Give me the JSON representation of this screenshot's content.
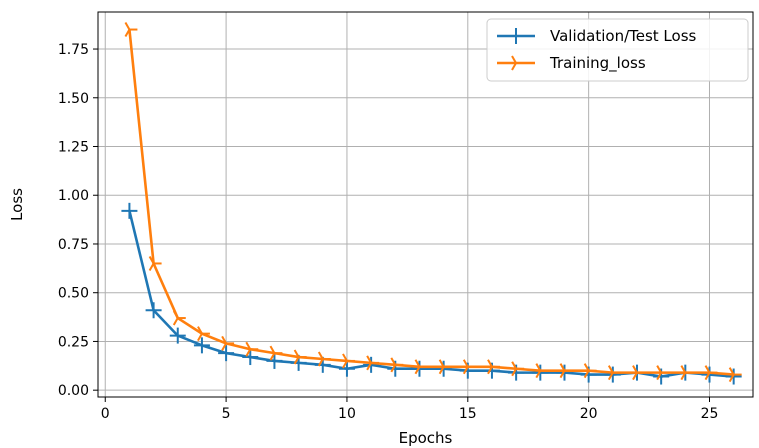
{
  "chart_data": {
    "type": "line",
    "title": "",
    "xlabel": "Epochs",
    "ylabel": "Loss",
    "xlim": [
      -0.3,
      26.8
    ],
    "ylim": [
      -0.035,
      1.94
    ],
    "xticks": [
      0,
      5,
      10,
      15,
      20,
      25
    ],
    "xtick_labels": [
      "0",
      "5",
      "10",
      "15",
      "20",
      "25"
    ],
    "yticks": [
      0.0,
      0.25,
      0.5,
      0.75,
      1.0,
      1.25,
      1.5,
      1.75
    ],
    "ytick_labels": [
      "0.00",
      "0.25",
      "0.50",
      "0.75",
      "1.00",
      "1.25",
      "1.50",
      "1.75"
    ],
    "grid": true,
    "legend_position": "top-right",
    "x": [
      1,
      2,
      3,
      4,
      5,
      6,
      7,
      8,
      9,
      10,
      11,
      12,
      13,
      14,
      15,
      16,
      17,
      18,
      19,
      20,
      21,
      22,
      23,
      24,
      25,
      26
    ],
    "series": [
      {
        "name": "Validation/Test Loss",
        "color": "#1f77b4",
        "marker": "plus",
        "values": [
          0.92,
          0.41,
          0.28,
          0.23,
          0.19,
          0.17,
          0.15,
          0.14,
          0.13,
          0.11,
          0.13,
          0.11,
          0.11,
          0.11,
          0.1,
          0.1,
          0.09,
          0.09,
          0.09,
          0.08,
          0.08,
          0.09,
          0.07,
          0.09,
          0.08,
          0.07
        ]
      },
      {
        "name": "Training_loss",
        "color": "#ff7f0e",
        "marker": "tri_right",
        "values": [
          1.85,
          0.65,
          0.37,
          0.29,
          0.24,
          0.21,
          0.19,
          0.17,
          0.16,
          0.15,
          0.14,
          0.13,
          0.12,
          0.12,
          0.12,
          0.12,
          0.11,
          0.1,
          0.1,
          0.1,
          0.09,
          0.09,
          0.09,
          0.09,
          0.09,
          0.08
        ]
      }
    ]
  }
}
